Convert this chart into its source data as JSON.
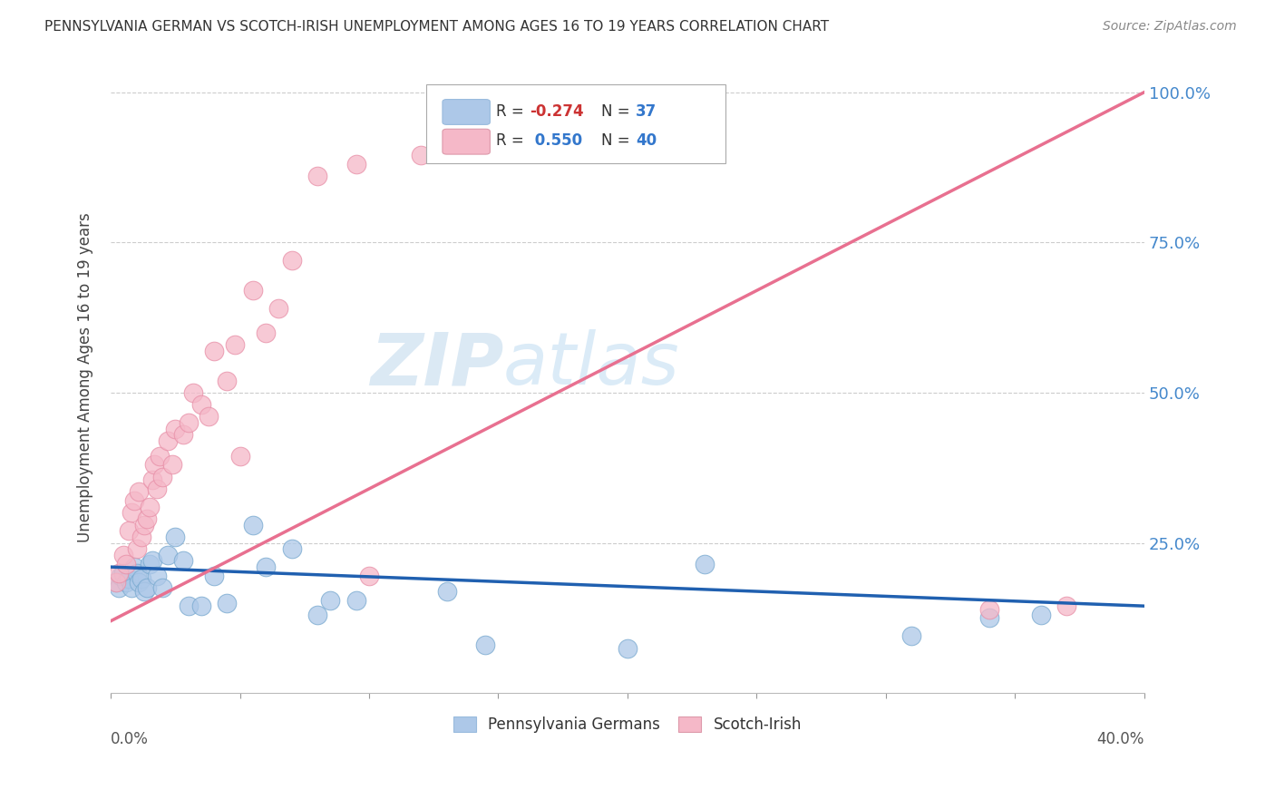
{
  "title": "PENNSYLVANIA GERMAN VS SCOTCH-IRISH UNEMPLOYMENT AMONG AGES 16 TO 19 YEARS CORRELATION CHART",
  "source": "Source: ZipAtlas.com",
  "ylabel": "Unemployment Among Ages 16 to 19 years",
  "ytick_labels": [
    "25.0%",
    "50.0%",
    "75.0%",
    "100.0%"
  ],
  "ytick_values": [
    0.25,
    0.5,
    0.75,
    1.0
  ],
  "xlim": [
    0.0,
    0.4
  ],
  "ylim": [
    0.0,
    1.05
  ],
  "blue_color": "#adc8e8",
  "pink_color": "#f5b8c8",
  "blue_edge_color": "#7aaad0",
  "pink_edge_color": "#e890a8",
  "blue_line_color": "#2060b0",
  "pink_line_color": "#e87090",
  "watermark_color": "#cce0f0",
  "pa_german_x": [
    0.002,
    0.003,
    0.004,
    0.005,
    0.006,
    0.007,
    0.008,
    0.009,
    0.01,
    0.011,
    0.012,
    0.013,
    0.014,
    0.015,
    0.016,
    0.018,
    0.02,
    0.022,
    0.025,
    0.028,
    0.03,
    0.035,
    0.04,
    0.045,
    0.055,
    0.06,
    0.07,
    0.08,
    0.085,
    0.095,
    0.13,
    0.145,
    0.2,
    0.23,
    0.31,
    0.34,
    0.36
  ],
  "pa_german_y": [
    0.185,
    0.175,
    0.195,
    0.2,
    0.185,
    0.19,
    0.175,
    0.21,
    0.2,
    0.185,
    0.19,
    0.17,
    0.175,
    0.215,
    0.22,
    0.195,
    0.175,
    0.23,
    0.26,
    0.22,
    0.145,
    0.145,
    0.195,
    0.15,
    0.28,
    0.21,
    0.24,
    0.13,
    0.155,
    0.155,
    0.17,
    0.08,
    0.075,
    0.215,
    0.095,
    0.125,
    0.13
  ],
  "scotch_irish_x": [
    0.002,
    0.003,
    0.005,
    0.006,
    0.007,
    0.008,
    0.009,
    0.01,
    0.011,
    0.012,
    0.013,
    0.014,
    0.015,
    0.016,
    0.017,
    0.018,
    0.019,
    0.02,
    0.022,
    0.024,
    0.025,
    0.028,
    0.03,
    0.032,
    0.035,
    0.038,
    0.04,
    0.045,
    0.048,
    0.05,
    0.055,
    0.06,
    0.065,
    0.07,
    0.08,
    0.095,
    0.1,
    0.12,
    0.34,
    0.37
  ],
  "scotch_irish_y": [
    0.185,
    0.2,
    0.23,
    0.215,
    0.27,
    0.3,
    0.32,
    0.24,
    0.335,
    0.26,
    0.28,
    0.29,
    0.31,
    0.355,
    0.38,
    0.34,
    0.395,
    0.36,
    0.42,
    0.38,
    0.44,
    0.43,
    0.45,
    0.5,
    0.48,
    0.46,
    0.57,
    0.52,
    0.58,
    0.395,
    0.67,
    0.6,
    0.64,
    0.72,
    0.86,
    0.88,
    0.195,
    0.895,
    0.14,
    0.145
  ],
  "pink_line_x0": 0.0,
  "pink_line_y0": 0.12,
  "pink_line_x1": 0.4,
  "pink_line_y1": 1.0,
  "blue_line_x0": 0.0,
  "blue_line_y0": 0.21,
  "blue_line_x1": 0.4,
  "blue_line_y1": 0.145
}
